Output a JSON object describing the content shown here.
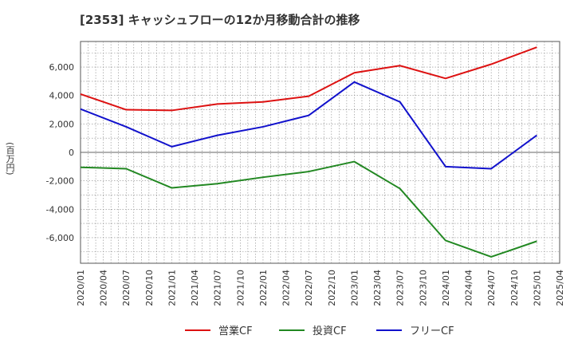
{
  "chart_data": {
    "type": "line",
    "title": "[2353]  キャッシュフローの12か月移動合計の推移",
    "ylabel": "(百万円)",
    "xlabel": "",
    "ylim": [
      -7800,
      7800
    ],
    "yticks": [
      -6000,
      -4000,
      -2000,
      0,
      2000,
      4000,
      6000
    ],
    "ytick_labels": [
      "-6,000",
      "-4,000",
      "-2,000",
      "0",
      "2,000",
      "4,000",
      "6,000"
    ],
    "x_tick_labels": [
      "2020/01",
      "2020/04",
      "2020/07",
      "2020/10",
      "2021/01",
      "2021/04",
      "2021/07",
      "2021/10",
      "2022/01",
      "2022/04",
      "2022/07",
      "2022/10",
      "2023/01",
      "2023/04",
      "2023/07",
      "2023/10",
      "2024/01",
      "2024/04",
      "2024/07",
      "2024/10",
      "2025/01",
      "2025/04"
    ],
    "x": [
      "2020/01",
      "2020/07",
      "2021/01",
      "2021/07",
      "2022/01",
      "2022/07",
      "2023/01",
      "2023/07",
      "2024/01",
      "2024/07",
      "2025/01"
    ],
    "series": [
      {
        "name": "営業CF",
        "color": "#dd1111",
        "values": [
          4100,
          3000,
          2950,
          3400,
          3550,
          3950,
          5600,
          6100,
          5200,
          6200,
          7400
        ]
      },
      {
        "name": "投資CF",
        "color": "#228822",
        "values": [
          -1050,
          -1150,
          -2500,
          -2200,
          -1750,
          -1350,
          -650,
          -2550,
          -6200,
          -7350,
          -6250
        ]
      },
      {
        "name": "フリーCF",
        "color": "#1111cc",
        "values": [
          3050,
          1800,
          400,
          1200,
          1800,
          2600,
          4950,
          3550,
          -1000,
          -1150,
          1200
        ]
      }
    ],
    "grid": true,
    "legend_position": "bottom"
  }
}
